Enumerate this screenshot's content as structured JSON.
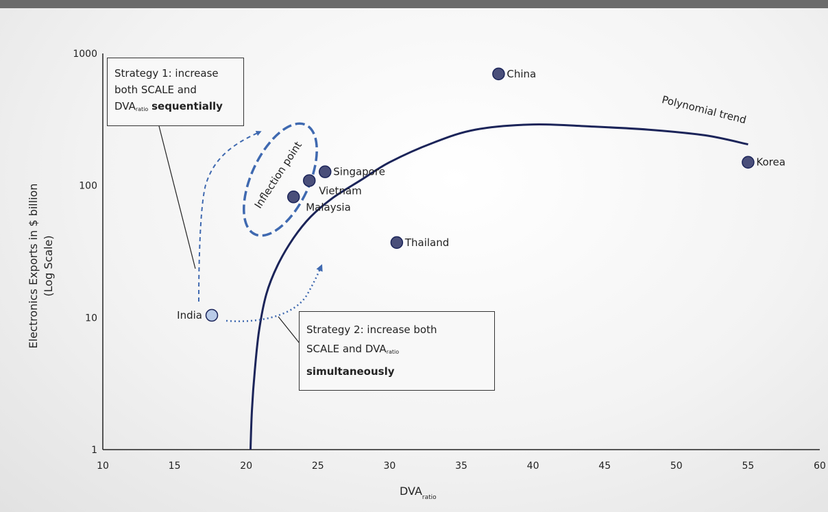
{
  "chart_data": {
    "type": "scatter",
    "title": "",
    "xlabel_main": "DVA",
    "xlabel_sub": "ratio",
    "ylabel_line1": "Electronics Exports in $ billion",
    "ylabel_line2": "(Log Scale)",
    "x_ticks": [
      "10",
      "15",
      "20",
      "25",
      "30",
      "35",
      "40",
      "45",
      "50",
      "55",
      "60"
    ],
    "y_ticks": [
      "1",
      "10",
      "100",
      "1000"
    ],
    "xlim": [
      10,
      60
    ],
    "ylim": [
      1,
      1000
    ],
    "y_scale": "log",
    "points": [
      {
        "label": "China",
        "x": 37.6,
        "y": 700,
        "color": "#4a4f7a",
        "label_color": "#2f4a8f"
      },
      {
        "label": "Korea",
        "x": 55.0,
        "y": 150,
        "color": "#4a4f7a",
        "label_color": "#222222"
      },
      {
        "label": "Singapore",
        "x": 25.5,
        "y": 127,
        "color": "#4a4f7a",
        "label_color": "#222222"
      },
      {
        "label": "Vietnam",
        "x": 24.4,
        "y": 109,
        "color": "#4a4f7a",
        "label_color": "#222222"
      },
      {
        "label": "Malaysia",
        "x": 23.3,
        "y": 82,
        "color": "#4a4f7a",
        "label_color": "#222222"
      },
      {
        "label": "Thailand",
        "x": 30.5,
        "y": 37,
        "color": "#4a4f7a",
        "label_color": "#222222"
      },
      {
        "label": "India",
        "x": 17.6,
        "y": 10.4,
        "color": "#b9cbe8",
        "label_color": "#3f69b0"
      }
    ],
    "trend": {
      "label": "Polynomial trend",
      "color": "#1b2459",
      "points": [
        [
          20.3,
          1
        ],
        [
          20.4,
          2
        ],
        [
          20.6,
          4
        ],
        [
          20.9,
          8
        ],
        [
          21.4,
          15
        ],
        [
          22.2,
          25
        ],
        [
          23.3,
          40
        ],
        [
          24.5,
          58
        ],
        [
          26,
          80
        ],
        [
          28,
          110
        ],
        [
          30,
          150
        ],
        [
          33,
          210
        ],
        [
          36,
          265
        ],
        [
          40,
          290
        ],
        [
          44,
          280
        ],
        [
          48,
          265
        ],
        [
          52,
          240
        ],
        [
          55,
          205
        ]
      ]
    },
    "annotations": {
      "inflection": "Inflection point",
      "strategy1": {
        "line1": "Strategy 1: increase",
        "line2": "both SCALE and",
        "line3_pre": "DVA",
        "line3_sub": "ratio",
        "line3_bold": "sequentially"
      },
      "strategy2": {
        "line1": "Strategy 2: increase both",
        "line2_pre": "SCALE and DVA",
        "line2_sub": "ratio",
        "line3_bold": "simultaneously"
      }
    },
    "colors": {
      "accent": "#3f69b0",
      "axis": "#222222",
      "marker": "#4a4f7a"
    },
    "grid": false,
    "legend": "none"
  }
}
